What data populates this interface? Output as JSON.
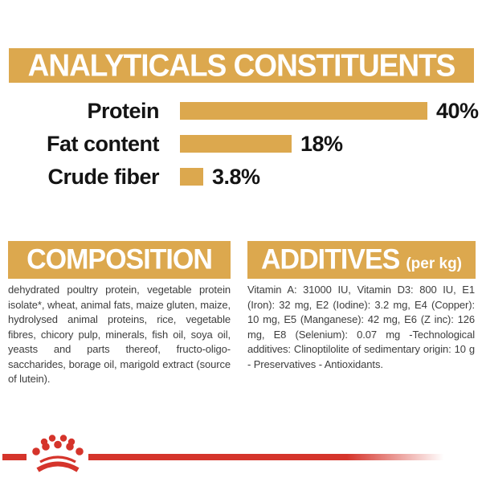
{
  "colors": {
    "gold": "#DCA84E",
    "red": "#D5342B",
    "heading_text": "#FFFFFF",
    "label_text": "#141414",
    "body_text": "#3D3D3D"
  },
  "header": {
    "title": "ANALYTICALS CONSTITUENTS"
  },
  "chart_data": {
    "type": "bar",
    "orientation": "horizontal",
    "title": "ANALYTICALS CONSTITUENTS",
    "categories": [
      "Protein",
      "Fat content",
      "Crude fiber"
    ],
    "values": [
      40,
      18,
      3.8
    ],
    "value_labels": [
      "40%",
      "18%",
      "3.8%"
    ],
    "unit": "%",
    "xlim": [
      0,
      40
    ],
    "grid": false,
    "legend": false,
    "bar_color": "#DCA84E"
  },
  "sections": {
    "composition": {
      "title": "COMPOSITION",
      "body": "dehydrated poultry protein, vegetable protein isolate*, wheat, animal fats, maize gluten, maize, hydrolysed animal proteins, rice, vegetable fibres, chicory pulp, minerals, fish oil, soya oil, yeasts and parts thereof, fructo-oligo-saccharides, borage oil, marigold extract (source of lutein)."
    },
    "additives": {
      "title": "ADDITIVES",
      "title_suffix": "(per kg)",
      "body": "Vitamin A: 31000 IU, Vitamin D3: 800 IU, E1 (Iron): 32 mg, E2 (Iodine): 3.2 mg, E4 (Copper): 10 mg, E5 (Manganese): 42 mg, E6 (Z inc): 126 mg, E8 (Selenium): 0.07 mg -Technological additives: Clinoptilolite of sedimentary origin: 10 g - Preservatives - Antioxidants."
    }
  },
  "footer": {
    "logo_icon": "royal-canin-crown-icon"
  }
}
